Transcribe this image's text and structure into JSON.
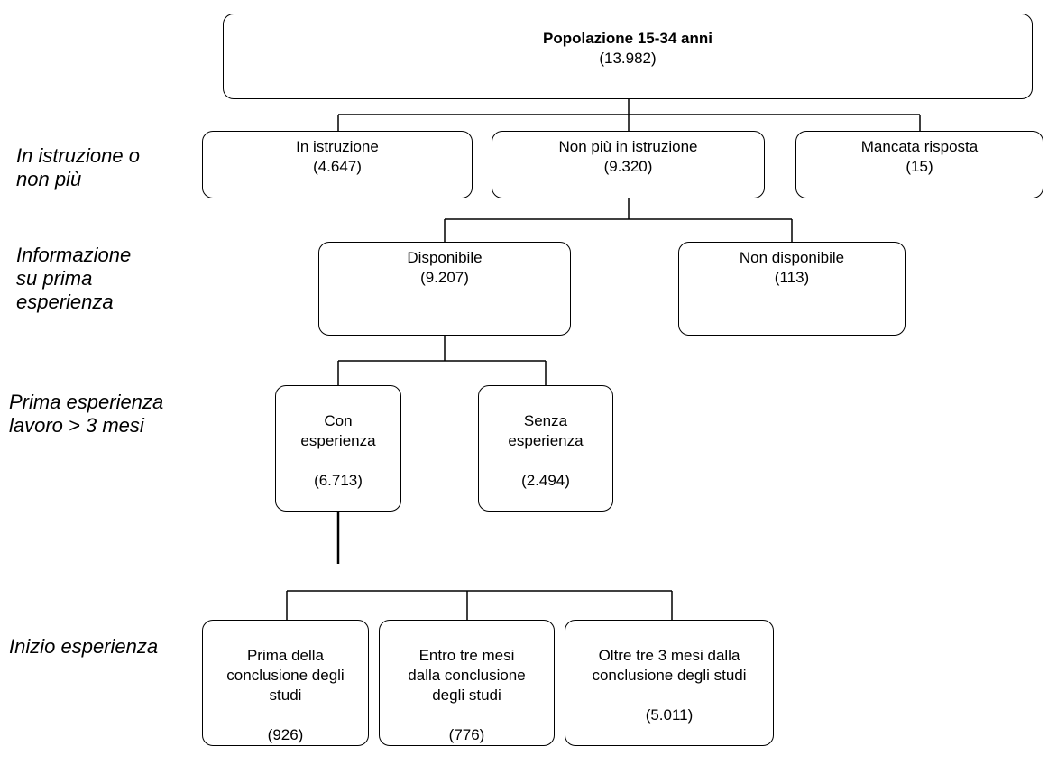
{
  "levels": {
    "istruzione": "In istruzione o\nnon più",
    "informazione": "Informazione\nsu prima\nesperienza",
    "prima_esperienza": "Prima esperienza\nlavoro > 3 mesi",
    "inizio": "Inizio esperienza"
  },
  "nodes": {
    "root": {
      "title": "Popolazione 15-34 anni",
      "count": "(13.982)"
    },
    "in_istruzione": {
      "title": "In istruzione",
      "count": "(4.647)"
    },
    "non_piu": {
      "title": "Non più in istruzione",
      "count": "(9.320)"
    },
    "mancata": {
      "title": "Mancata risposta",
      "count": "(15)"
    },
    "disponibile": {
      "title": "Disponibile",
      "count": "(9.207)"
    },
    "non_disponibile": {
      "title": "Non disponibile",
      "count": "(113)"
    },
    "con_esperienza": {
      "title": "Con\nesperienza",
      "count": "(6.713)"
    },
    "senza_esperienza": {
      "title": "Senza\nesperienza",
      "count": "(2.494)"
    },
    "prima": {
      "title": "Prima della\nconclusione degli\nstudi",
      "count": "(926)"
    },
    "entro": {
      "title": "Entro tre mesi\ndalla conclusione\ndegli studi",
      "count": "(776)"
    },
    "oltre": {
      "title": "Oltre tre 3 mesi dalla\nconclusione degli studi",
      "count": "(5.011)"
    }
  }
}
